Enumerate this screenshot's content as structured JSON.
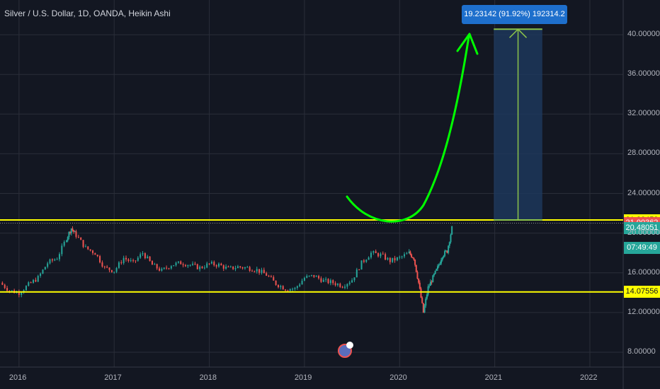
{
  "header": {
    "title": "Silver / U.S. Dollar, 1D, OANDA, Heikin Ashi"
  },
  "measure": {
    "label": "19.23142 (91.92%) 192314.2",
    "from": 21.32453,
    "to": 40.55595
  },
  "colors": {
    "background": "#131722",
    "grid": "#2a2e39",
    "up": "#26a69a",
    "down": "#ef5350",
    "level": "#ffff00",
    "arrow": "#00ff00",
    "measure_fill": "#1e3a5f",
    "measure_line": "#8bc34a",
    "label_bg": "#1e6fcc"
  },
  "price_tags": [
    {
      "value": "21.32453",
      "price": 21.32453,
      "bg": "#ffff00",
      "fg": "#131722"
    },
    {
      "value": "21.00362",
      "price": 21.00362,
      "bg": "#ef5350",
      "fg": "#ffffff"
    },
    {
      "value": "20.48051",
      "price": 20.48051,
      "bg": "#26a69a",
      "fg": "#ffffff"
    },
    {
      "value": "07:49:49",
      "price": 18.5,
      "bg": "#26a69a",
      "fg": "#ffffff"
    },
    {
      "value": "14.07556",
      "price": 14.07556,
      "bg": "#ffff00",
      "fg": "#131722"
    }
  ],
  "chart_data": {
    "type": "line",
    "style": "heikin-ashi candlesticks",
    "title": "Silver / U.S. Dollar, 1D, OANDA, Heikin Ashi",
    "x_ticks": [
      "2016",
      "2017",
      "2018",
      "2019",
      "2020",
      "2021",
      "2022"
    ],
    "y_ticks": [
      "8.00000",
      "12.00000",
      "16.00000",
      "20.00000",
      "24.00000",
      "28.00000",
      "32.00000",
      "36.00000",
      "40.00000"
    ],
    "y_tick_values": [
      8,
      12,
      16,
      20,
      24,
      28,
      32,
      36,
      40
    ],
    "ylim": [
      6.5,
      43.5
    ],
    "xlim": [
      2015.8,
      2022.35
    ],
    "horizontal_levels": [
      21.32453,
      14.07556
    ],
    "dotted_level": 21.00362,
    "series": [
      {
        "x": [
          2015.8,
          2015.9,
          2016.0,
          2016.1,
          2016.2,
          2016.3,
          2016.4,
          2016.5,
          2016.55,
          2016.6,
          2016.7,
          2016.8,
          2016.9,
          2017.0,
          2017.1,
          2017.2,
          2017.3,
          2017.4,
          2017.5,
          2017.6,
          2017.7,
          2017.8,
          2017.9,
          2018.0,
          2018.1,
          2018.2,
          2018.3,
          2018.4,
          2018.5,
          2018.6,
          2018.7,
          2018.8,
          2018.9,
          2019.0,
          2019.1,
          2019.2,
          2019.3,
          2019.4,
          2019.5,
          2019.6,
          2019.7,
          2019.8,
          2019.9,
          2020.0,
          2020.1,
          2020.15,
          2020.2,
          2020.25,
          2020.3,
          2020.35,
          2020.4,
          2020.45,
          2020.5,
          2020.55
        ],
        "values": [
          15.0,
          14.2,
          14.0,
          14.8,
          15.5,
          17.0,
          17.5,
          19.5,
          20.5,
          19.8,
          18.5,
          18.0,
          16.5,
          16.2,
          17.5,
          17.0,
          18.0,
          16.8,
          16.2,
          16.8,
          17.0,
          16.8,
          16.5,
          16.9,
          16.8,
          16.4,
          16.6,
          16.5,
          16.3,
          15.8,
          14.9,
          14.4,
          14.4,
          15.5,
          15.7,
          15.2,
          15.0,
          14.7,
          15.3,
          17.0,
          18.0,
          17.8,
          17.2,
          17.5,
          18.0,
          17.5,
          15.0,
          12.0,
          14.5,
          15.5,
          16.5,
          17.8,
          18.2,
          20.5
        ]
      }
    ]
  }
}
